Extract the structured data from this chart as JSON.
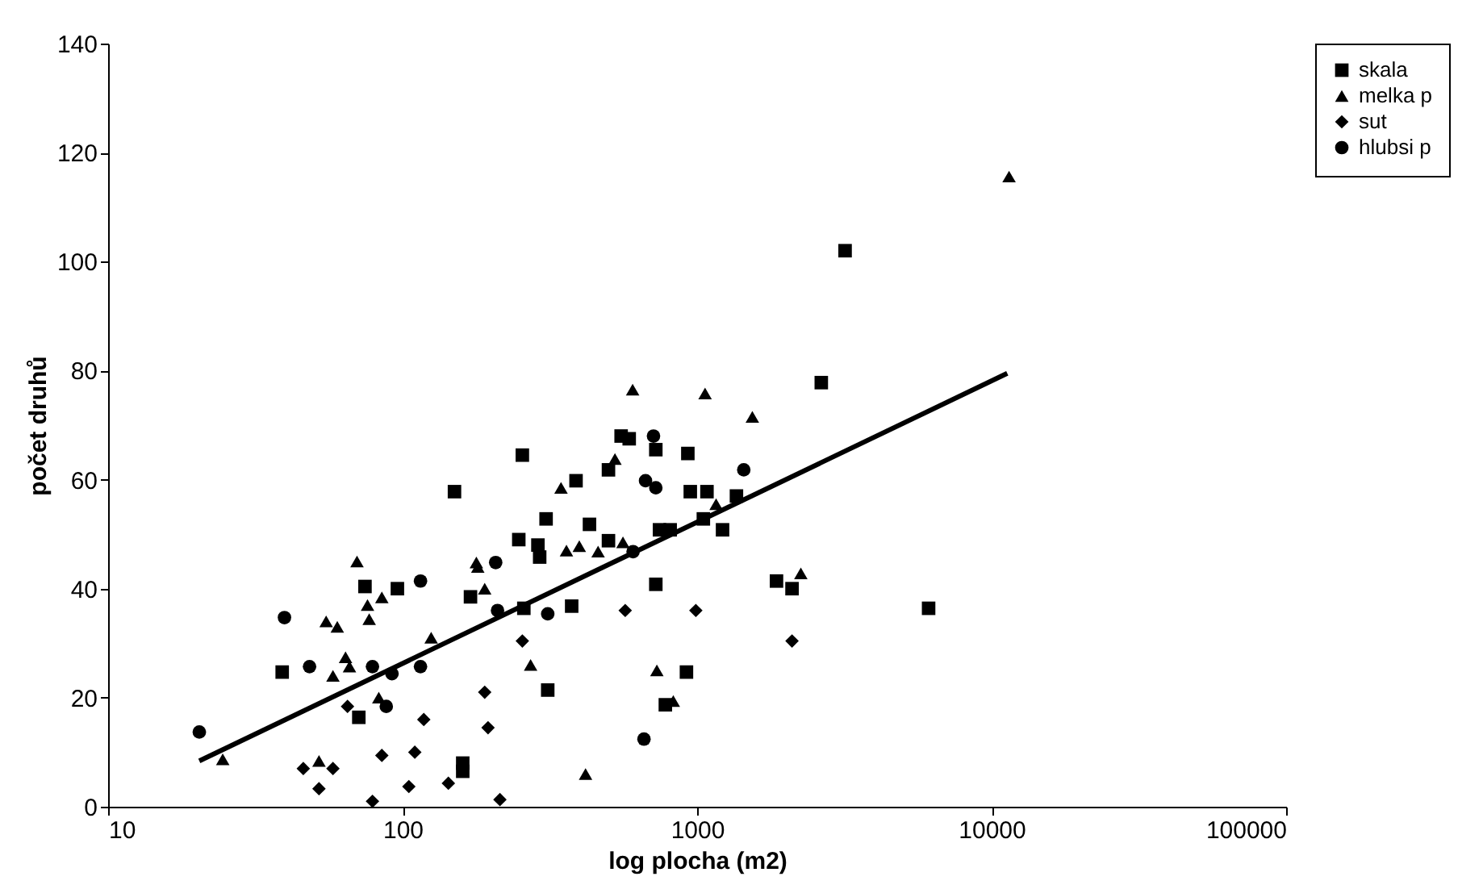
{
  "chart_data": {
    "type": "scatter",
    "xlabel": "log plocha (m2)",
    "ylabel": "počet druhů",
    "xlim": [
      10,
      100000
    ],
    "xticks": [
      10,
      100,
      1000,
      10000,
      100000
    ],
    "ylim": [
      0,
      140
    ],
    "yticks": [
      0,
      20,
      40,
      60,
      80,
      100,
      120,
      140
    ],
    "log": "x",
    "grid": false,
    "legend": "right",
    "series": [
      {
        "name": "skala",
        "color": "#000000",
        "marker": "square",
        "x": [
          39,
          74.5,
          96,
          71,
          150,
          255,
          307,
          248,
          288,
          3180,
          2640,
          552,
          588,
          724,
          930,
          500,
          388,
          948,
          1080,
          1360,
          431,
          1050,
          1220,
          745,
          810,
          292,
          500,
          724,
          1860,
          2100,
          258,
          375,
          311,
          920,
          780,
          6110,
          170,
          160,
          160
        ],
        "values": [
          24.7,
          40.4,
          40,
          16.4,
          57.8,
          64.5,
          52.8,
          49,
          48,
          102,
          77.8,
          68,
          67.5,
          65.5,
          64.8,
          61.8,
          59.8,
          57.8,
          57.8,
          57,
          51.8,
          52.8,
          50.8,
          50.8,
          50.8,
          45.8,
          48.8,
          40.8,
          41.4,
          40,
          36.4,
          36.8,
          21.4,
          24.7,
          18.7,
          36.4,
          38.5,
          8,
          6.5
        ]
      },
      {
        "name": "melka p",
        "color": "#000000",
        "marker": "triangle",
        "x": [
          24.5,
          55,
          60,
          70,
          76,
          85,
          77,
          58,
          64,
          66,
          83,
          52,
          178,
          604,
          1064,
          1540,
          526,
          345,
          1160,
          360,
          398,
          461,
          560,
          2250,
          272,
          730,
          830,
          418,
          11460,
          180,
          190,
          125
        ],
        "values": [
          8.7,
          34,
          33,
          45,
          37,
          38.4,
          34.4,
          24,
          27.4,
          25.7,
          20,
          8.4,
          44.8,
          76.5,
          75.8,
          71.5,
          63.8,
          58.5,
          55.5,
          47,
          47.8,
          46.8,
          48.5,
          42.8,
          26,
          25,
          19.4,
          6,
          115.6,
          44,
          40,
          31
        ]
      },
      {
        "name": "sut",
        "color": "#000000",
        "marker": "diamond",
        "x": [
          65,
          85,
          110,
          46,
          58,
          52,
          105,
          79,
          570,
          990,
          2100,
          255,
          143,
          214,
          190,
          195,
          118
        ],
        "values": [
          18.4,
          9.4,
          10,
          7,
          7,
          3.3,
          3.7,
          1,
          36,
          36,
          30.4,
          30.4,
          4.3,
          1.3,
          21,
          14.5,
          16
        ]
      },
      {
        "name": "hlubsi p",
        "color": "#000000",
        "marker": "circle",
        "x": [
          20.4,
          39.7,
          48.3,
          115,
          79,
          92,
          115,
          88,
          207,
          711,
          1440,
          668,
          724,
          606,
          311,
          660,
          210
        ],
        "values": [
          13.7,
          34.7,
          25.7,
          41.4,
          25.7,
          24.4,
          25.7,
          18.4,
          44.8,
          68,
          61.8,
          59.8,
          58.5,
          46.8,
          35.4,
          12.4,
          36
        ]
      },
      {
        "type": "line",
        "color": "#000000",
        "marker": "none",
        "line_style": "solid",
        "x": [
          20.4,
          11300
        ],
        "values": [
          8.4,
          79.5
        ]
      }
    ]
  }
}
